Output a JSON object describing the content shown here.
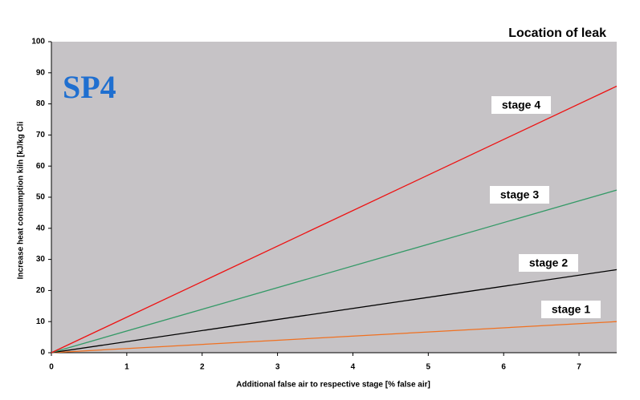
{
  "chart_data": {
    "type": "line",
    "title": "Location of leak",
    "annotation": "SP4",
    "x_label": "Additional false air to respective stage [% false air]",
    "y_label": "Increase heat consumption kiln [kJ/kg Cli",
    "x": [
      0,
      7.5
    ],
    "series": [
      {
        "name": "stage 1",
        "color": "#f07020",
        "values": [
          0,
          10
        ]
      },
      {
        "name": "stage 2",
        "color": "#000000",
        "values": [
          0,
          26.7
        ]
      },
      {
        "name": "stage 3",
        "color": "#339966",
        "values": [
          0,
          52.3
        ]
      },
      {
        "name": "stage 4",
        "color": "#ee1111",
        "values": [
          0,
          85.7
        ]
      }
    ],
    "xlim": [
      0,
      7.5
    ],
    "xticks": [
      0,
      1,
      2,
      3,
      4,
      5,
      6,
      7
    ],
    "ylim": [
      0,
      100
    ],
    "yticks": [
      0,
      10,
      20,
      30,
      40,
      50,
      60,
      70,
      80,
      90,
      100
    ],
    "grid": false,
    "background": "#c6c3c6"
  }
}
